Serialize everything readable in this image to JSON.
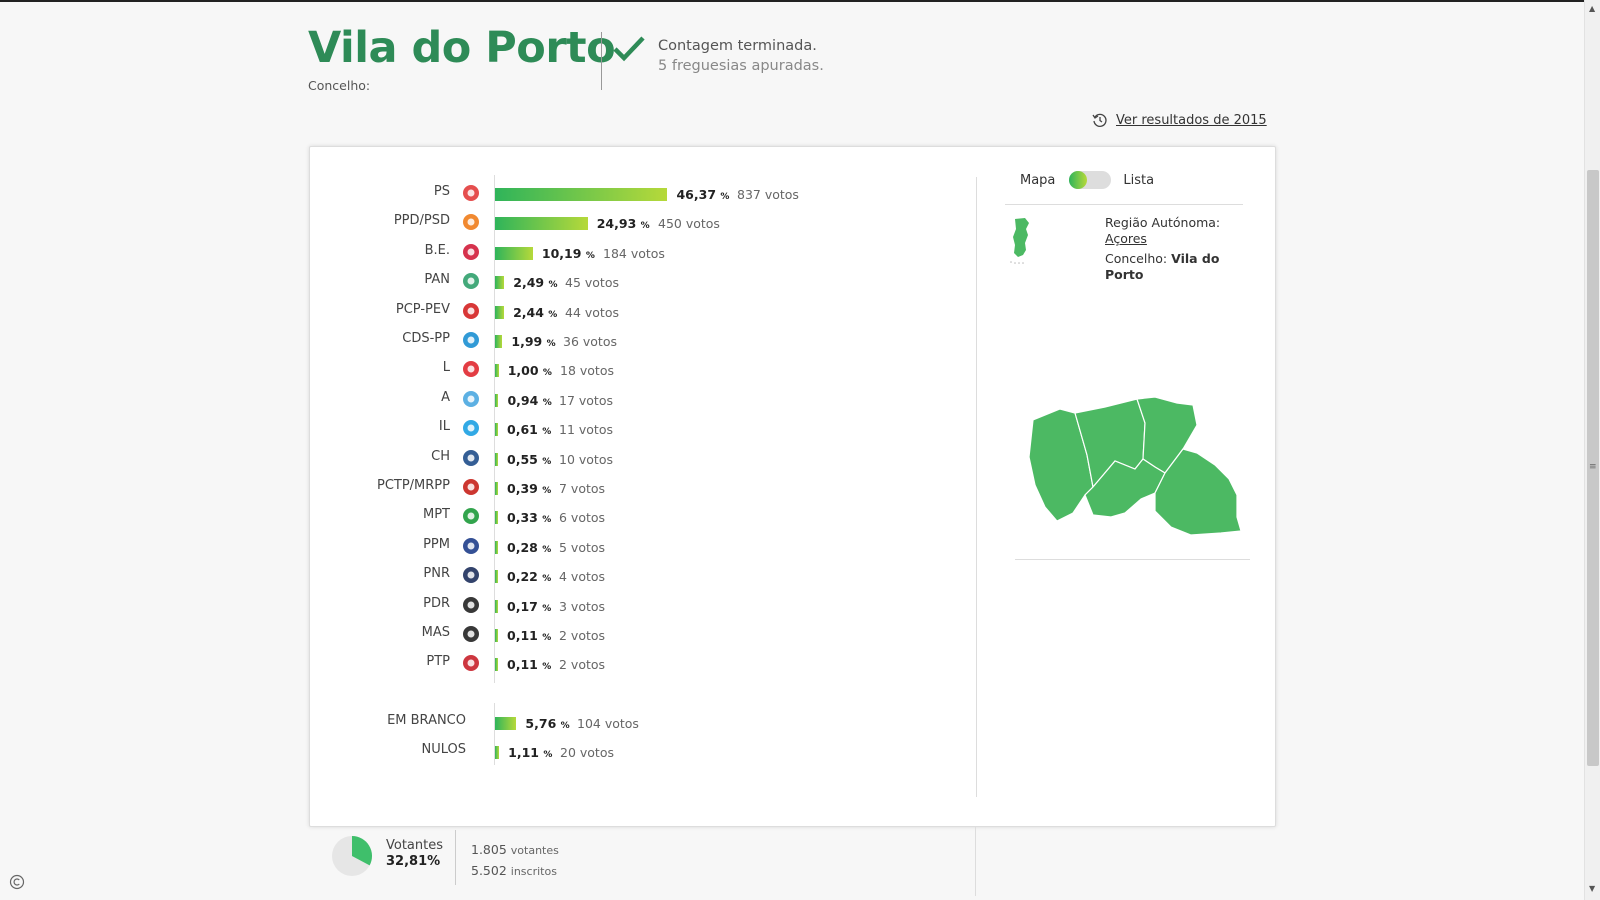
{
  "header": {
    "title": "Vila do Porto",
    "subtitle": "Concelho:",
    "status_line1": "Contagem terminada.",
    "status_line2": "5 freguesias apuradas."
  },
  "history_link": {
    "label": "Ver resultados de 2015",
    "icon": "history-icon"
  },
  "results": [
    {
      "party": "PS",
      "pct": "46,37",
      "pct_value": 46.37,
      "votes": "837 votos",
      "logo": "ps-logo"
    },
    {
      "party": "PPD/PSD",
      "pct": "24,93",
      "pct_value": 24.93,
      "votes": "450 votos",
      "logo": "psd-logo"
    },
    {
      "party": "B.E.",
      "pct": "10,19",
      "pct_value": 10.19,
      "votes": "184 votos",
      "logo": "be-logo"
    },
    {
      "party": "PAN",
      "pct": "2,49",
      "pct_value": 2.49,
      "votes": "45 votos",
      "logo": "pan-logo"
    },
    {
      "party": "PCP-PEV",
      "pct": "2,44",
      "pct_value": 2.44,
      "votes": "44 votos",
      "logo": "pcp-logo"
    },
    {
      "party": "CDS-PP",
      "pct": "1,99",
      "pct_value": 1.99,
      "votes": "36 votos",
      "logo": "cds-logo"
    },
    {
      "party": "L",
      "pct": "1,00",
      "pct_value": 1.0,
      "votes": "18 votos",
      "logo": "livre-logo"
    },
    {
      "party": "A",
      "pct": "0,94",
      "pct_value": 0.94,
      "votes": "17 votos",
      "logo": "alianca-logo"
    },
    {
      "party": "IL",
      "pct": "0,61",
      "pct_value": 0.61,
      "votes": "11 votos",
      "logo": "il-logo"
    },
    {
      "party": "CH",
      "pct": "0,55",
      "pct_value": 0.55,
      "votes": "10 votos",
      "logo": "chega-logo"
    },
    {
      "party": "PCTP/MRPP",
      "pct": "0,39",
      "pct_value": 0.39,
      "votes": "7 votos",
      "logo": "pctp-logo"
    },
    {
      "party": "MPT",
      "pct": "0,33",
      "pct_value": 0.33,
      "votes": "6 votos",
      "logo": "mpt-logo"
    },
    {
      "party": "PPM",
      "pct": "0,28",
      "pct_value": 0.28,
      "votes": "5 votos",
      "logo": "ppm-logo"
    },
    {
      "party": "PNR",
      "pct": "0,22",
      "pct_value": 0.22,
      "votes": "4 votos",
      "logo": "pnr-logo"
    },
    {
      "party": "PDR",
      "pct": "0,17",
      "pct_value": 0.17,
      "votes": "3 votos",
      "logo": "pdr-logo"
    },
    {
      "party": "MAS",
      "pct": "0,11",
      "pct_value": 0.11,
      "votes": "2 votos",
      "logo": "mas-logo"
    },
    {
      "party": "PTP",
      "pct": "0,11",
      "pct_value": 0.11,
      "votes": "2 votos",
      "logo": "ptp-logo"
    }
  ],
  "other_results": [
    {
      "party": "EM BRANCO",
      "pct": "5,76",
      "pct_value": 5.76,
      "votes": "104 votos"
    },
    {
      "party": "NULOS",
      "pct": "1,11",
      "pct_value": 1.11,
      "votes": "20 votos"
    }
  ],
  "percent_sign": "%",
  "view_toggle": {
    "left_label": "Mapa",
    "right_label": "Lista",
    "selected": "Mapa"
  },
  "region": {
    "label1": "Região Autónoma:",
    "region_name": "Açores",
    "label2": "Concelho:",
    "municipality": "Vila do Porto"
  },
  "colors": {
    "accent": "#2e8b57",
    "map_fill": "#4cb963",
    "bar_start": "#2fb45a",
    "bar_end": "#b6d93a"
  },
  "footer": {
    "turnout_label": "Votantes",
    "turnout_value": "32,81%",
    "turnout_fraction": 0.3281,
    "voters_count": "1.805",
    "voters_label": "votantes",
    "registered_count": "5.502",
    "registered_label": "inscritos"
  }
}
